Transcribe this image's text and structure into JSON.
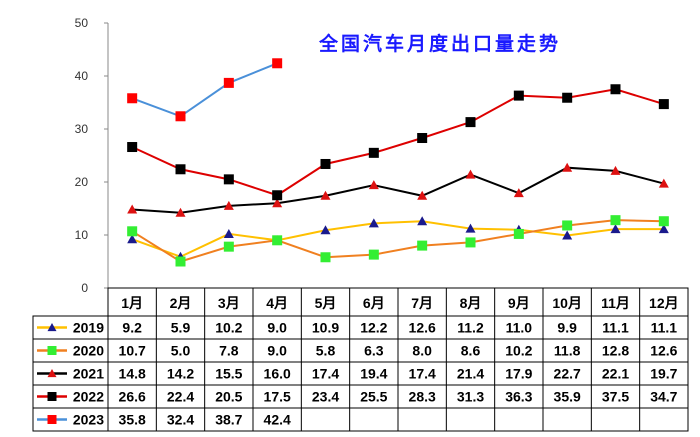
{
  "chart_data": {
    "type": "line",
    "title": "全国汽车月度出口量走势",
    "categories": [
      "1月",
      "2月",
      "3月",
      "4月",
      "5月",
      "6月",
      "7月",
      "8月",
      "9月",
      "10月",
      "11月",
      "12月"
    ],
    "ylim": [
      0,
      50
    ],
    "yticks": [
      0,
      10,
      20,
      30,
      40,
      50
    ],
    "grid": false,
    "legend_placement": "data-table-left",
    "series": [
      {
        "name": "2019",
        "line_color": "#ffc000",
        "marker": "triangle",
        "marker_color": "#1a1a8c",
        "values": [
          9.2,
          5.9,
          10.2,
          9.0,
          10.9,
          12.2,
          12.6,
          11.2,
          11.0,
          9.9,
          11.1,
          11.1
        ]
      },
      {
        "name": "2020",
        "line_color": "#f08020",
        "marker": "square",
        "marker_color": "#33ee33",
        "values": [
          10.7,
          5.0,
          7.8,
          9.0,
          5.8,
          6.3,
          8.0,
          8.6,
          10.2,
          11.8,
          12.8,
          12.6
        ]
      },
      {
        "name": "2021",
        "line_color": "#000000",
        "marker": "triangle",
        "marker_color": "#dd1111",
        "values": [
          14.8,
          14.2,
          15.5,
          16.0,
          17.4,
          19.4,
          17.4,
          21.4,
          17.9,
          22.7,
          22.1,
          19.7
        ]
      },
      {
        "name": "2022",
        "line_color": "#dd0000",
        "marker": "square",
        "marker_color": "#000000",
        "values": [
          26.6,
          22.4,
          20.5,
          17.5,
          23.4,
          25.5,
          28.3,
          31.3,
          36.3,
          35.9,
          37.5,
          34.7
        ]
      },
      {
        "name": "2023",
        "line_color": "#4a90d9",
        "marker": "square",
        "marker_color": "#ff0000",
        "values": [
          35.8,
          32.4,
          38.7,
          42.4,
          null,
          null,
          null,
          null,
          null,
          null,
          null,
          null
        ]
      }
    ]
  }
}
